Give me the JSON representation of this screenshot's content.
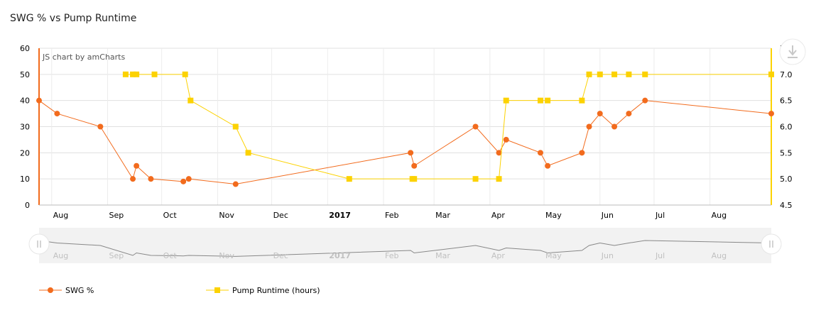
{
  "title": "SWG % vs Pump Runtime",
  "credit": "JS chart by amCharts",
  "chart_data": {
    "type": "line",
    "left_axis": {
      "ylim": [
        0,
        60
      ],
      "ticks": [
        "0",
        "10",
        "20",
        "30",
        "40",
        "50",
        "60"
      ]
    },
    "right_axis": {
      "ylim": [
        4.5,
        7.5
      ],
      "ticks": [
        "4.5",
        "5.0",
        "5.5",
        "6.0",
        "6.5",
        "7.0",
        "7.5"
      ]
    },
    "x_axis": {
      "range": [
        "2016-07-25",
        "2017-09-04"
      ],
      "ticks": [
        {
          "date": "2016-08-01",
          "label": "Aug",
          "bold": false
        },
        {
          "date": "2016-09-01",
          "label": "Sep",
          "bold": false
        },
        {
          "date": "2016-10-01",
          "label": "Oct",
          "bold": false
        },
        {
          "date": "2016-11-01",
          "label": "Nov",
          "bold": false
        },
        {
          "date": "2016-12-01",
          "label": "Dec",
          "bold": false
        },
        {
          "date": "2017-01-01",
          "label": "2017",
          "bold": true
        },
        {
          "date": "2017-02-01",
          "label": "Feb",
          "bold": false
        },
        {
          "date": "2017-03-01",
          "label": "Mar",
          "bold": false
        },
        {
          "date": "2017-04-01",
          "label": "Apr",
          "bold": false
        },
        {
          "date": "2017-05-01",
          "label": "May",
          "bold": false
        },
        {
          "date": "2017-06-01",
          "label": "Jun",
          "bold": false
        },
        {
          "date": "2017-07-01",
          "label": "Jul",
          "bold": false
        },
        {
          "date": "2017-08-01",
          "label": "Aug",
          "bold": false
        }
      ]
    },
    "grid": true,
    "legend_position": "bottom-left",
    "series": [
      {
        "name": "SWG %",
        "axis": "left",
        "color": "#f26b1d",
        "marker": "circle",
        "points": [
          [
            "2016-07-25",
            40
          ],
          [
            "2016-08-04",
            35
          ],
          [
            "2016-08-28",
            30
          ],
          [
            "2016-09-15",
            10
          ],
          [
            "2016-09-17",
            15
          ],
          [
            "2016-09-25",
            10
          ],
          [
            "2016-10-13",
            9
          ],
          [
            "2016-10-16",
            10
          ],
          [
            "2016-11-11",
            8
          ],
          [
            "2017-02-16",
            20
          ],
          [
            "2017-02-18",
            15
          ],
          [
            "2017-03-24",
            30
          ],
          [
            "2017-04-06",
            20
          ],
          [
            "2017-04-10",
            25
          ],
          [
            "2017-04-29",
            20
          ],
          [
            "2017-05-03",
            15
          ],
          [
            "2017-05-22",
            20
          ],
          [
            "2017-05-26",
            30
          ],
          [
            "2017-06-01",
            35
          ],
          [
            "2017-06-09",
            30
          ],
          [
            "2017-06-17",
            35
          ],
          [
            "2017-06-26",
            40
          ],
          [
            "2017-09-04",
            35
          ]
        ]
      },
      {
        "name": "Pump Runtime (hours)",
        "axis": "right",
        "color": "#fcd202",
        "marker": "square",
        "points": [
          [
            "2016-09-11",
            7
          ],
          [
            "2016-09-15",
            7
          ],
          [
            "2016-09-17",
            7
          ],
          [
            "2016-09-27",
            7
          ],
          [
            "2016-10-14",
            7
          ],
          [
            "2016-10-17",
            6.5
          ],
          [
            "2016-11-11",
            6
          ],
          [
            "2016-11-18",
            5.5
          ],
          [
            "2017-01-13",
            5
          ],
          [
            "2017-02-17",
            5
          ],
          [
            "2017-02-18",
            5
          ],
          [
            "2017-03-24",
            5
          ],
          [
            "2017-04-06",
            5
          ],
          [
            "2017-04-10",
            6.5
          ],
          [
            "2017-04-29",
            6.5
          ],
          [
            "2017-05-03",
            6.5
          ],
          [
            "2017-05-22",
            6.5
          ],
          [
            "2017-05-26",
            7
          ],
          [
            "2017-06-01",
            7
          ],
          [
            "2017-06-09",
            7
          ],
          [
            "2017-06-17",
            7
          ],
          [
            "2017-06-26",
            7
          ],
          [
            "2017-09-04",
            7
          ]
        ]
      }
    ]
  },
  "scrollbar": {
    "ticks_from": "x_axis"
  },
  "legend": [
    {
      "label": "SWG %",
      "color": "#f26b1d",
      "marker": "circle"
    },
    {
      "label": "Pump Runtime (hours)",
      "color": "#fcd202",
      "marker": "square"
    }
  ]
}
